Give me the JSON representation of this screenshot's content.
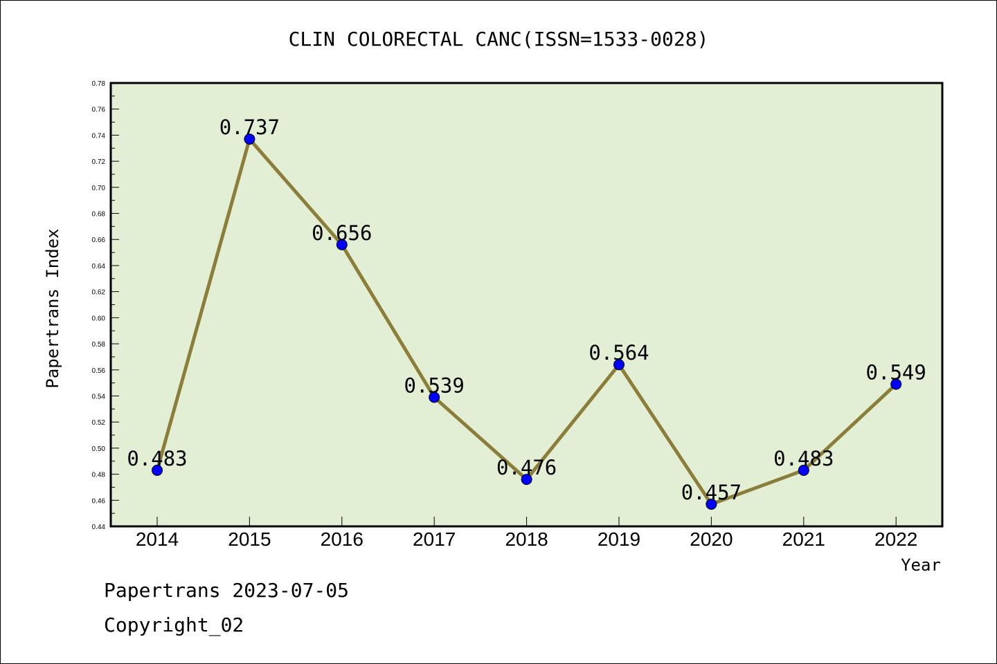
{
  "chart_data": {
    "type": "line",
    "title": "CLIN COLORECTAL CANC(ISSN=1533-0028)",
    "xlabel": "Year",
    "ylabel": "Papertrans Index",
    "categories": [
      "2014",
      "2015",
      "2016",
      "2017",
      "2018",
      "2019",
      "2020",
      "2021",
      "2022"
    ],
    "series": [
      {
        "values": [
          0.483,
          0.737,
          0.656,
          0.539,
          0.476,
          0.564,
          0.457,
          0.483,
          0.549
        ]
      }
    ],
    "data_labels": [
      "0.483",
      "0.737",
      "0.656",
      "0.539",
      "0.476",
      "0.564",
      "0.457",
      "0.483",
      "0.549"
    ],
    "ylim": [
      0.44,
      0.78
    ],
    "yticks": [
      "0.44",
      "0.46",
      "0.48",
      "0.50",
      "0.52",
      "0.54",
      "0.56",
      "0.58",
      "0.60",
      "0.62",
      "0.64",
      "0.66",
      "0.68",
      "0.70",
      "0.72",
      "0.74",
      "0.76",
      "0.78"
    ],
    "grid": false,
    "legend": "none",
    "colors": {
      "plot_background": "#e2efd4",
      "line": "#8b7d3a",
      "marker": "#0000ff"
    }
  },
  "footer": {
    "line1": "Papertrans 2023-07-05",
    "line2": "Copyright_02"
  }
}
